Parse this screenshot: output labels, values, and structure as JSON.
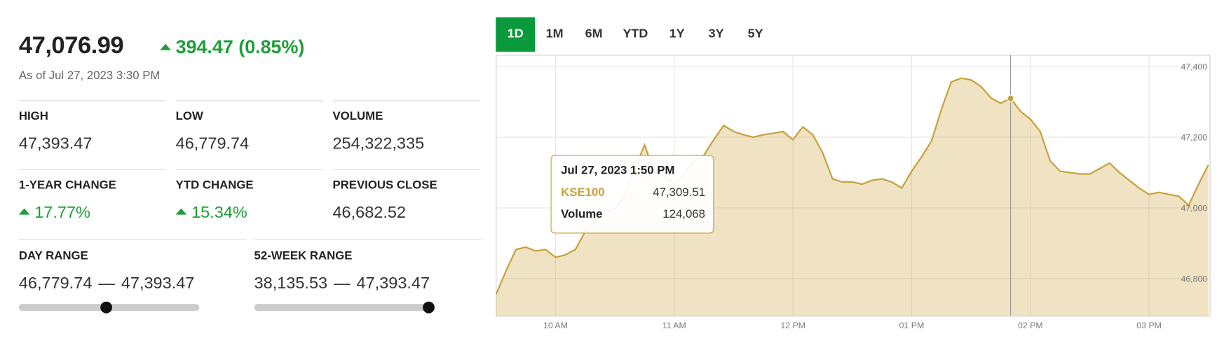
{
  "tabs": {
    "items": [
      "1D",
      "1M",
      "6M",
      "YTD",
      "1Y",
      "3Y",
      "5Y"
    ],
    "active": 0
  },
  "quote": {
    "price": {
      "value": 47076.99,
      "label": "47,076.99"
    },
    "change": "394.47 (0.85%)",
    "direction": "up",
    "as_of": "As of Jul 27, 2023 3:30 PM"
  },
  "stats": [
    {
      "label": "HIGH",
      "value": "47,393.47"
    },
    {
      "label": "LOW",
      "value": "46,779.74"
    },
    {
      "label": "VOLUME",
      "value": "254,322,335"
    },
    {
      "label": "1-YEAR CHANGE",
      "value": "17.77%",
      "direction": "up"
    },
    {
      "label": "YTD CHANGE",
      "value": "15.34%",
      "direction": "up"
    },
    {
      "label": "PREVIOUS CLOSE",
      "value": "46,682.52"
    }
  ],
  "ranges": [
    {
      "label": "DAY RANGE",
      "low": {
        "value": 46779.74,
        "label": "46,779.74"
      },
      "high": {
        "value": 47393.47,
        "label": "47,393.47"
      },
      "separator": "—"
    },
    {
      "label": "52-WEEK RANGE",
      "low": {
        "value": 38135.53,
        "label": "38,135.53"
      },
      "high": {
        "value": 47393.47,
        "label": "47,393.47"
      },
      "separator": "—"
    }
  ],
  "chart_data": {
    "type": "area",
    "x": [
      570,
      575,
      580,
      585,
      590,
      595,
      600,
      605,
      610,
      615,
      620,
      625,
      630,
      635,
      640,
      645,
      650,
      655,
      660,
      665,
      670,
      675,
      680,
      685,
      690,
      695,
      700,
      705,
      710,
      715,
      720,
      725,
      730,
      735,
      740,
      745,
      750,
      755,
      760,
      765,
      770,
      775,
      780,
      785,
      790,
      795,
      800,
      805,
      810,
      815,
      820,
      825,
      830,
      835,
      840,
      845,
      850,
      855,
      860,
      865,
      870,
      875,
      880,
      885,
      890,
      895,
      900,
      905,
      910,
      915,
      920,
      925,
      930
    ],
    "series": [
      {
        "name": "KSE100",
        "color": "#c9a13b",
        "values": [
          46756,
          46822,
          46882,
          46889,
          46878,
          46882,
          46860,
          46867,
          46882,
          46933,
          46962,
          46989,
          47000,
          47033,
          47111,
          47178,
          47100,
          47089,
          47067,
          47096,
          47133,
          47149,
          47193,
          47233,
          47216,
          47207,
          47200,
          47207,
          47211,
          47216,
          47193,
          47229,
          47207,
          47156,
          47082,
          47073,
          47073,
          47067,
          47078,
          47082,
          47073,
          47056,
          47104,
          47144,
          47189,
          47278,
          47356,
          47367,
          47362,
          47344,
          47311,
          47296,
          47310,
          47273,
          47251,
          47216,
          47133,
          47104,
          47100,
          47096,
          47096,
          47111,
          47127,
          47100,
          47078,
          47056,
          47038,
          47044,
          47038,
          47033,
          47007,
          47067,
          47122
        ]
      }
    ],
    "xlim": [
      570,
      930
    ],
    "xticks": [
      {
        "value": 600,
        "label": "10 AM"
      },
      {
        "value": 660,
        "label": "11 AM"
      },
      {
        "value": 720,
        "label": "12 PM"
      },
      {
        "value": 780,
        "label": "01 PM"
      },
      {
        "value": 840,
        "label": "02 PM"
      },
      {
        "value": 900,
        "label": "03 PM"
      }
    ],
    "ylim": [
      46695,
      47433
    ],
    "yticks": [
      {
        "value": 46800,
        "label": "46,800"
      },
      {
        "value": 47000,
        "label": "47,000"
      },
      {
        "value": 47200,
        "label": "47,200"
      },
      {
        "value": 47400,
        "label": "47,400"
      }
    ],
    "grid": true,
    "tooltip": {
      "title": "Jul 27, 2023 1:50 PM",
      "x": 830,
      "value": {
        "value": 47309.51,
        "label": "47,309.51"
      },
      "volume_label": "Volume",
      "volume": "124,068"
    }
  }
}
